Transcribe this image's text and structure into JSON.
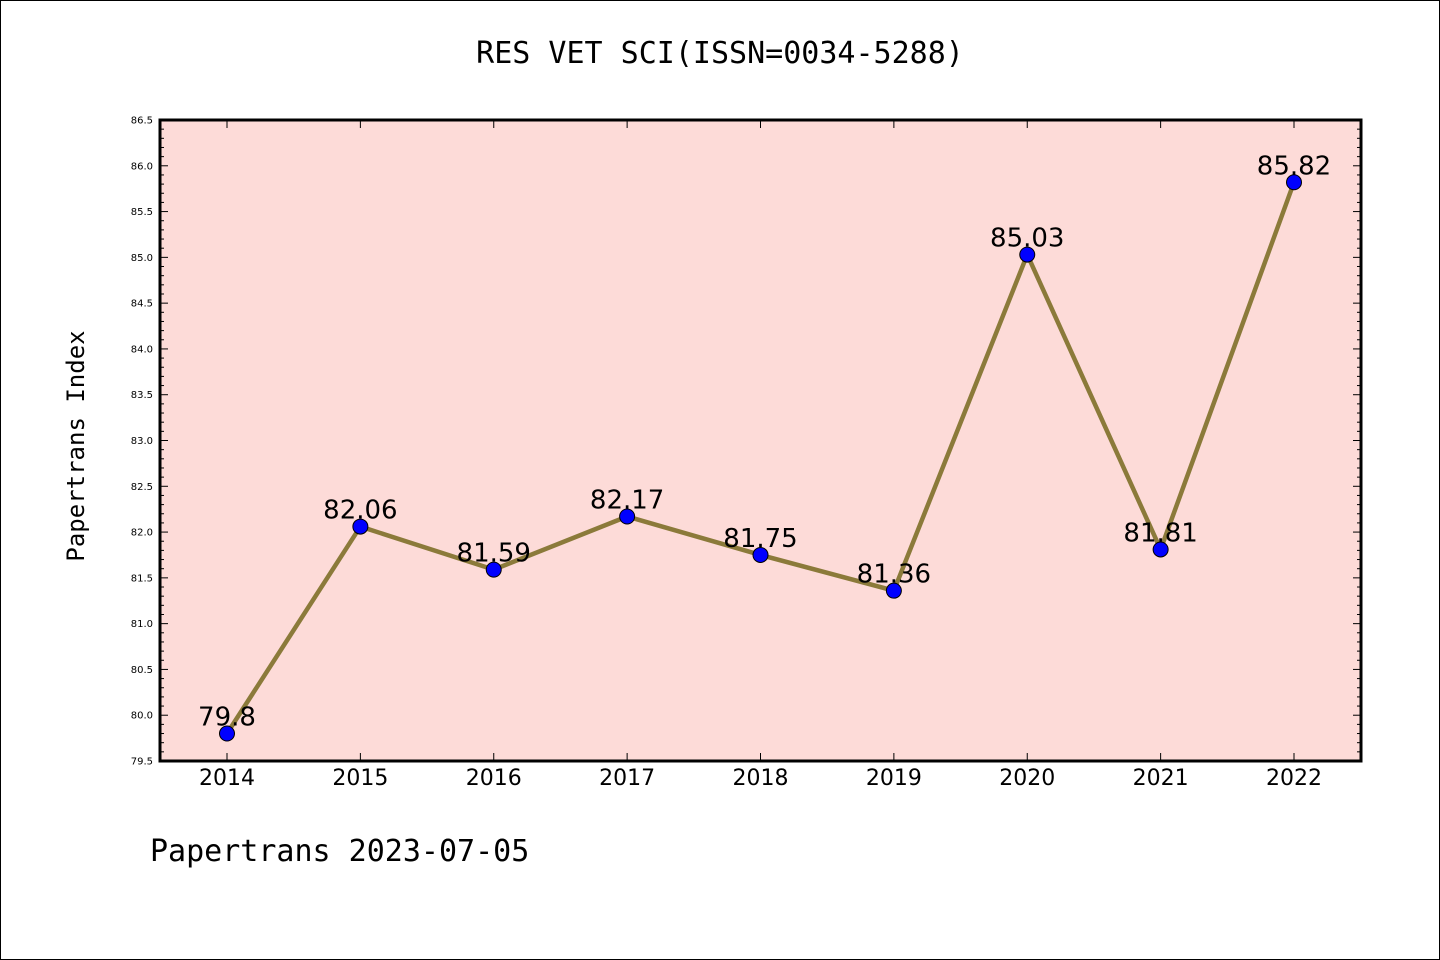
{
  "chart_data": {
    "type": "line",
    "title": "RES VET SCI(ISSN=0034-5288)",
    "ylabel": "Papertrans Index",
    "xlabel": "",
    "categories": [
      "2014",
      "2015",
      "2016",
      "2017",
      "2018",
      "2019",
      "2020",
      "2021",
      "2022"
    ],
    "values": [
      79.8,
      82.06,
      81.59,
      82.17,
      81.75,
      81.36,
      85.03,
      81.81,
      85.82
    ],
    "value_labels": [
      "79.8",
      "82.06",
      "81.59",
      "82.17",
      "81.75",
      "81.36",
      "85.03",
      "81.81",
      "85.82"
    ],
    "ylim": [
      79.5,
      86.5
    ],
    "yticks": [
      "79.5",
      "80.0",
      "80.5",
      "81.0",
      "81.5",
      "82.0",
      "82.5",
      "83.0",
      "83.5",
      "84.0",
      "84.5",
      "85.0",
      "85.5",
      "86.0",
      "86.5"
    ],
    "grid": false,
    "colors": {
      "plot_background": "#fddbd8",
      "line": "#8b7a3a",
      "marker": "#0000ff"
    }
  },
  "footer": "Papertrans 2023-07-05"
}
